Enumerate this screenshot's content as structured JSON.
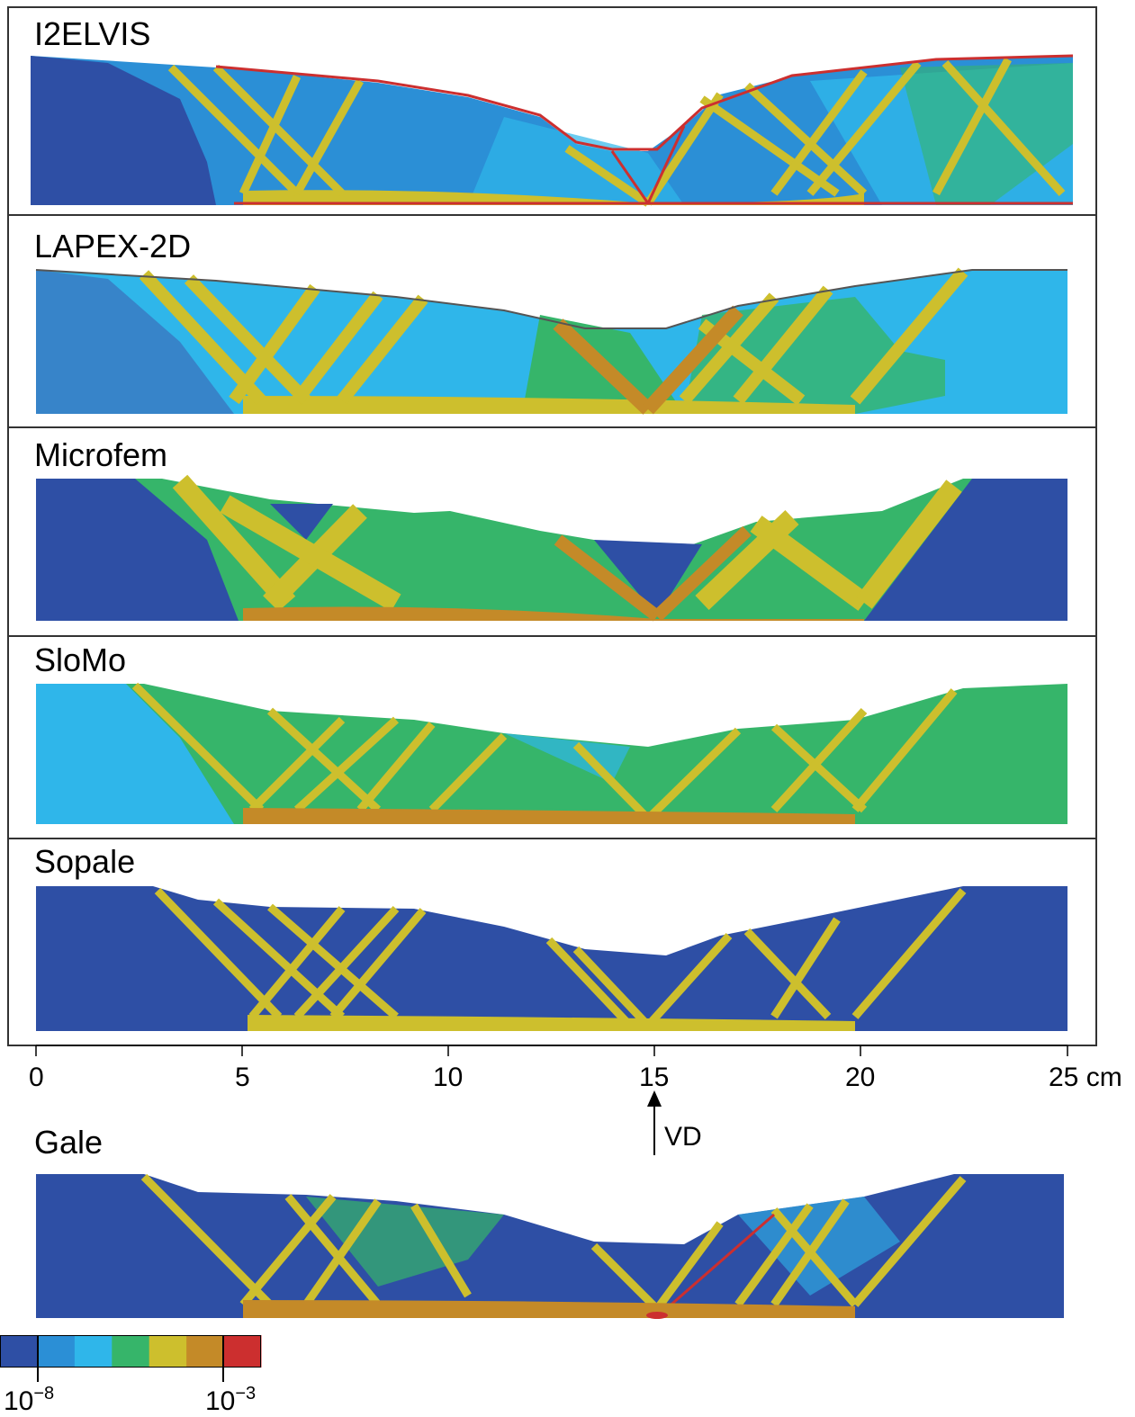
{
  "panels": [
    {
      "label": "I2ELVIS"
    },
    {
      "label": "LAPEX-2D"
    },
    {
      "label": "Microfem"
    },
    {
      "label": "SloMo"
    },
    {
      "label": "Sopale"
    },
    {
      "label": "Gale"
    }
  ],
  "axis": {
    "ticks": [
      "0",
      "5",
      "10",
      "15",
      "20",
      "25 cm"
    ],
    "tick_values": [
      0,
      5,
      10,
      15,
      20,
      25
    ],
    "range": [
      0,
      25
    ],
    "unit": "cm"
  },
  "marker": {
    "label": "VD",
    "position": 15
  },
  "colorbar": {
    "colors": [
      "#2e4fa5",
      "#2b8fd6",
      "#2fb6ea",
      "#36b56a",
      "#cdbf2d",
      "#c48a28",
      "#cc2f2f"
    ],
    "min_base": "10",
    "min_exp": "−8",
    "max_base": "10",
    "max_exp": "−3"
  }
}
